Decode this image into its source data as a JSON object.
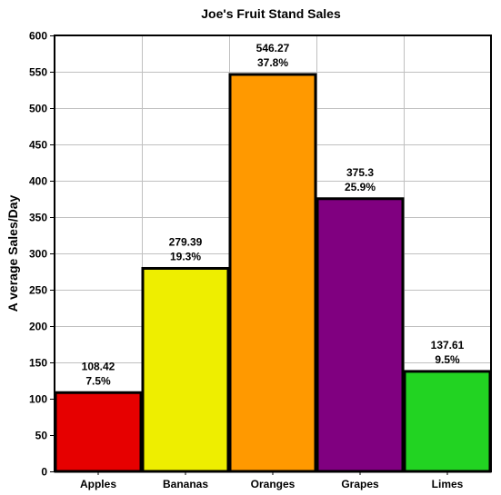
{
  "chart_data": {
    "type": "bar",
    "title": "Joe's Fruit Stand Sales",
    "xlabel": "",
    "ylabel": "A verage Sales/Day",
    "categories": [
      "Apples",
      "Bananas",
      "Oranges",
      "Grapes",
      "Limes"
    ],
    "values": [
      108.42,
      279.39,
      546.27,
      375.3,
      137.61
    ],
    "percent_labels": [
      "7.5%",
      "19.3%",
      "37.8%",
      "25.9%",
      "9.5%"
    ],
    "value_labels": [
      "108.42",
      "279.39",
      "546.27",
      "375.3",
      "137.61"
    ],
    "colors": [
      "#e60000",
      "#eeee00",
      "#ff9900",
      "#800080",
      "#22d322"
    ],
    "ylim": [
      0,
      600
    ],
    "yticks": [
      0,
      50,
      100,
      150,
      200,
      250,
      300,
      350,
      400,
      450,
      500,
      550,
      600
    ],
    "ytick_labels": [
      "0",
      "50",
      "100",
      "150",
      "200",
      "250",
      "300",
      "350",
      "400",
      "450",
      "500",
      "550",
      "600"
    ],
    "grid": true,
    "legend": "none"
  }
}
